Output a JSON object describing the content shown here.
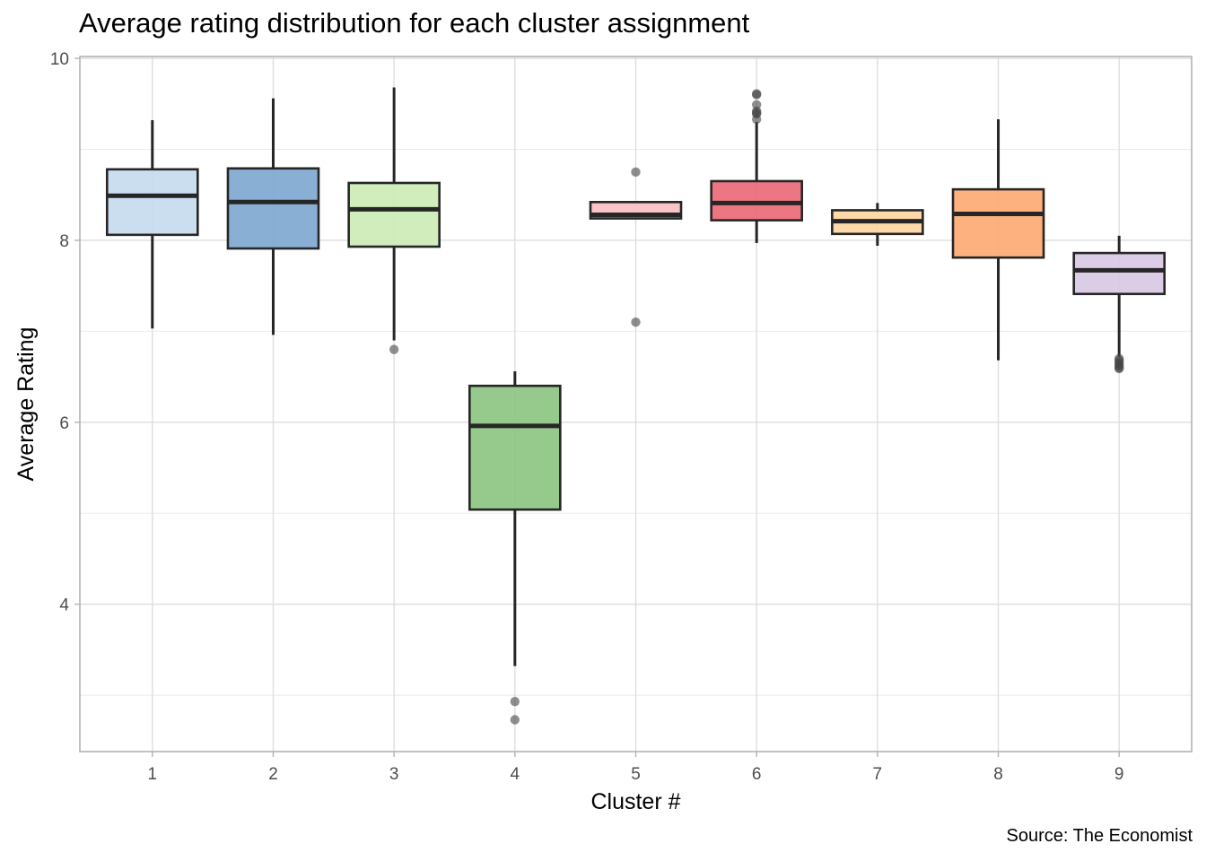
{
  "chart_data": {
    "type": "box",
    "title": "Average rating distribution for each cluster assignment",
    "xlabel": "Cluster #",
    "ylabel": "Average Rating",
    "caption": "Source: The Economist",
    "ylim": [
      2.38,
      10.02
    ],
    "yticks": [
      4,
      6,
      8,
      10
    ],
    "ytick_labels": [
      "4",
      "6",
      "8",
      "10"
    ],
    "y_minor_gridlines": [
      3,
      5,
      7,
      9
    ],
    "grid": true,
    "legend": "none",
    "categories": [
      "1",
      "2",
      "3",
      "4",
      "5",
      "6",
      "7",
      "8",
      "9"
    ],
    "boxes": [
      {
        "cluster": "1",
        "whisker_low": 7.03,
        "q1": 8.06,
        "median": 8.49,
        "q3": 8.78,
        "whisker_high": 9.32,
        "outliers": [],
        "color": "#c6dbef"
      },
      {
        "cluster": "2",
        "whisker_low": 6.96,
        "q1": 7.91,
        "median": 8.42,
        "q3": 8.79,
        "whisker_high": 9.56,
        "outliers": [],
        "color": "#7fa8d1"
      },
      {
        "cluster": "3",
        "whisker_low": 6.9,
        "q1": 7.93,
        "median": 8.34,
        "q3": 8.63,
        "whisker_high": 9.68,
        "outliers": [
          6.8
        ],
        "color": "#ccebb5"
      },
      {
        "cluster": "4",
        "whisker_low": 3.32,
        "q1": 5.04,
        "median": 5.96,
        "q3": 6.4,
        "whisker_high": 6.56,
        "outliers": [
          2.93,
          2.73
        ],
        "color": "#8dc683"
      },
      {
        "cluster": "5",
        "whisker_low": 8.24,
        "q1": 8.24,
        "median": 8.28,
        "q3": 8.42,
        "whisker_high": 8.42,
        "outliers": [
          8.75,
          7.1
        ],
        "color": "#f9bfc1"
      },
      {
        "cluster": "6",
        "whisker_low": 7.97,
        "q1": 8.22,
        "median": 8.41,
        "q3": 8.65,
        "whisker_high": 9.3,
        "outliers": [
          9.61,
          9.6,
          9.49,
          9.42,
          9.4,
          9.39,
          9.33
        ],
        "color": "#ea6b78"
      },
      {
        "cluster": "7",
        "whisker_low": 7.94,
        "q1": 8.07,
        "median": 8.21,
        "q3": 8.33,
        "whisker_high": 8.41,
        "outliers": [],
        "color": "#fdd5a2"
      },
      {
        "cluster": "8",
        "whisker_low": 6.68,
        "q1": 7.81,
        "median": 8.29,
        "q3": 8.56,
        "whisker_high": 9.33,
        "outliers": [],
        "color": "#fdaa73"
      },
      {
        "cluster": "9",
        "whisker_low": 6.72,
        "q1": 7.41,
        "median": 7.67,
        "q3": 7.86,
        "whisker_high": 8.05,
        "outliers": [
          6.7,
          6.68,
          6.66,
          6.64,
          6.62,
          6.6,
          6.59
        ],
        "color": "#d9c9e4"
      }
    ]
  }
}
